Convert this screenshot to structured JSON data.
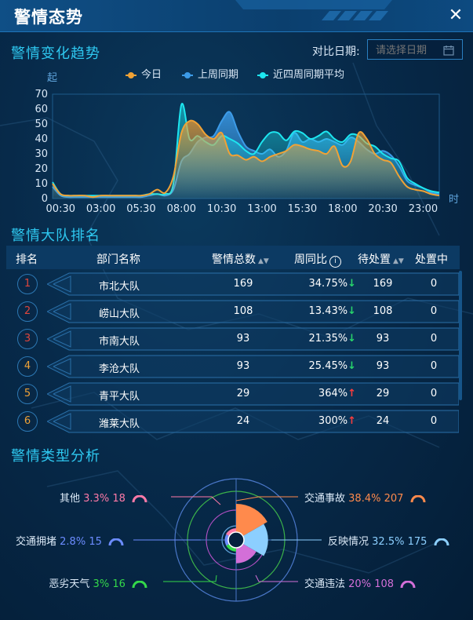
{
  "window": {
    "title": "警情态势"
  },
  "trend": {
    "title": "警情变化趋势",
    "date_label": "对比日期:",
    "date_placeholder": "请选择日期",
    "legend": [
      {
        "name": "今日",
        "color": "#f0a236"
      },
      {
        "name": "上周同期",
        "color": "#3c9be8"
      },
      {
        "name": "近四周同期平均",
        "color": "#1de6f0"
      }
    ]
  },
  "chart_data": {
    "type": "area",
    "ylabel": "起",
    "xlabel": "时",
    "ylim": [
      0,
      70
    ],
    "yticks": [
      0,
      10,
      20,
      30,
      40,
      50,
      60,
      70
    ],
    "xticks": [
      "00:30",
      "03:00",
      "05:30",
      "08:00",
      "10:30",
      "13:00",
      "15:30",
      "18:00",
      "20:30",
      "23:00"
    ],
    "x": [
      0,
      0.5,
      1,
      1.5,
      2,
      2.5,
      3,
      3.5,
      4,
      4.5,
      5,
      5.5,
      6,
      6.5,
      7,
      7.5,
      8,
      8.5,
      9,
      9.5,
      10,
      10.5,
      11,
      11.5,
      12,
      12.5,
      13,
      13.5,
      14,
      14.5,
      15,
      15.5,
      16,
      16.5,
      17,
      17.5,
      18,
      18.5,
      19,
      19.5,
      20,
      20.5,
      21,
      21.5,
      22,
      22.5,
      23,
      23.5,
      24
    ],
    "series": [
      {
        "name": "今日",
        "color": "#f0a236",
        "values": [
          10,
          3,
          2,
          2,
          2,
          1,
          2,
          2,
          2,
          2,
          2,
          2,
          3,
          6,
          4,
          15,
          44,
          52,
          50,
          43,
          40,
          44,
          30,
          29,
          26,
          28,
          25,
          28,
          30,
          32,
          36,
          35,
          33,
          32,
          30,
          35,
          22,
          25,
          44,
          40,
          30,
          26,
          24,
          15,
          8,
          6,
          5,
          3,
          2
        ]
      },
      {
        "name": "上周同期",
        "color": "#3c9be8",
        "values": [
          8,
          2,
          1,
          1,
          1,
          1,
          1,
          1,
          1,
          1,
          1,
          1,
          2,
          3,
          2,
          6,
          25,
          30,
          38,
          41,
          42,
          52,
          58,
          45,
          35,
          32,
          30,
          33,
          28,
          32,
          44,
          38,
          40,
          38,
          40,
          38,
          36,
          41,
          38,
          33,
          30,
          32,
          29,
          22,
          12,
          9,
          7,
          4,
          3
        ]
      },
      {
        "name": "近四周同期平均",
        "color": "#1de6f0",
        "values": [
          11,
          3,
          2,
          2,
          2,
          2,
          2,
          2,
          2,
          2,
          2,
          2,
          3,
          3,
          3,
          10,
          63,
          40,
          42,
          38,
          36,
          42,
          40,
          37,
          32,
          30,
          38,
          44,
          44,
          39,
          45,
          44,
          40,
          42,
          45,
          40,
          38,
          43,
          42,
          37,
          35,
          30,
          27,
          25,
          14,
          10,
          7,
          5,
          4
        ]
      }
    ]
  },
  "ranking": {
    "title": "警情大队排名",
    "headers": {
      "rank": "排名",
      "dept": "部门名称",
      "total": "警情总数",
      "wow": "周同比",
      "pending": "待处置",
      "processing": "处置中"
    },
    "rows": [
      {
        "rank": "1",
        "dept": "市北大队",
        "total": "169",
        "wow": "34.75%",
        "dir": "down",
        "pending": "169",
        "processing": "0",
        "rank_color": "#e0463c"
      },
      {
        "rank": "2",
        "dept": "崂山大队",
        "total": "108",
        "wow": "13.43%",
        "dir": "down",
        "pending": "108",
        "processing": "0",
        "rank_color": "#e0463c"
      },
      {
        "rank": "3",
        "dept": "市南大队",
        "total": "93",
        "wow": "21.35%",
        "dir": "down",
        "pending": "93",
        "processing": "0",
        "rank_color": "#e0463c"
      },
      {
        "rank": "4",
        "dept": "李沧大队",
        "total": "93",
        "wow": "25.45%",
        "dir": "down",
        "pending": "93",
        "processing": "0",
        "rank_color": "#f0a236"
      },
      {
        "rank": "5",
        "dept": "青平大队",
        "total": "29",
        "wow": "364%",
        "dir": "up",
        "pending": "29",
        "processing": "0",
        "rank_color": "#f0a236"
      },
      {
        "rank": "6",
        "dept": "潍莱大队",
        "total": "24",
        "wow": "300%",
        "dir": "up",
        "pending": "24",
        "processing": "0",
        "rank_color": "#f0a236"
      }
    ]
  },
  "types": {
    "title": "警情类型分析",
    "items": [
      {
        "name": "交通事故",
        "pct": "38.4%",
        "count": "207",
        "color": "#ff8a4c",
        "value": 38.4
      },
      {
        "name": "反映情况",
        "pct": "32.5%",
        "count": "175",
        "color": "#8ccfff",
        "value": 32.5
      },
      {
        "name": "交通违法",
        "pct": "20%",
        "count": "108",
        "color": "#d36fd8",
        "value": 20
      },
      {
        "name": "恶劣天气",
        "pct": "3%",
        "count": "16",
        "color": "#34d84a",
        "value": 3
      },
      {
        "name": "交通拥堵",
        "pct": "2.8%",
        "count": "15",
        "color": "#6c8cff",
        "value": 2.8
      },
      {
        "name": "其他",
        "pct": "3.3%",
        "count": "18",
        "color": "#ff7aa8",
        "value": 3.3
      }
    ]
  }
}
